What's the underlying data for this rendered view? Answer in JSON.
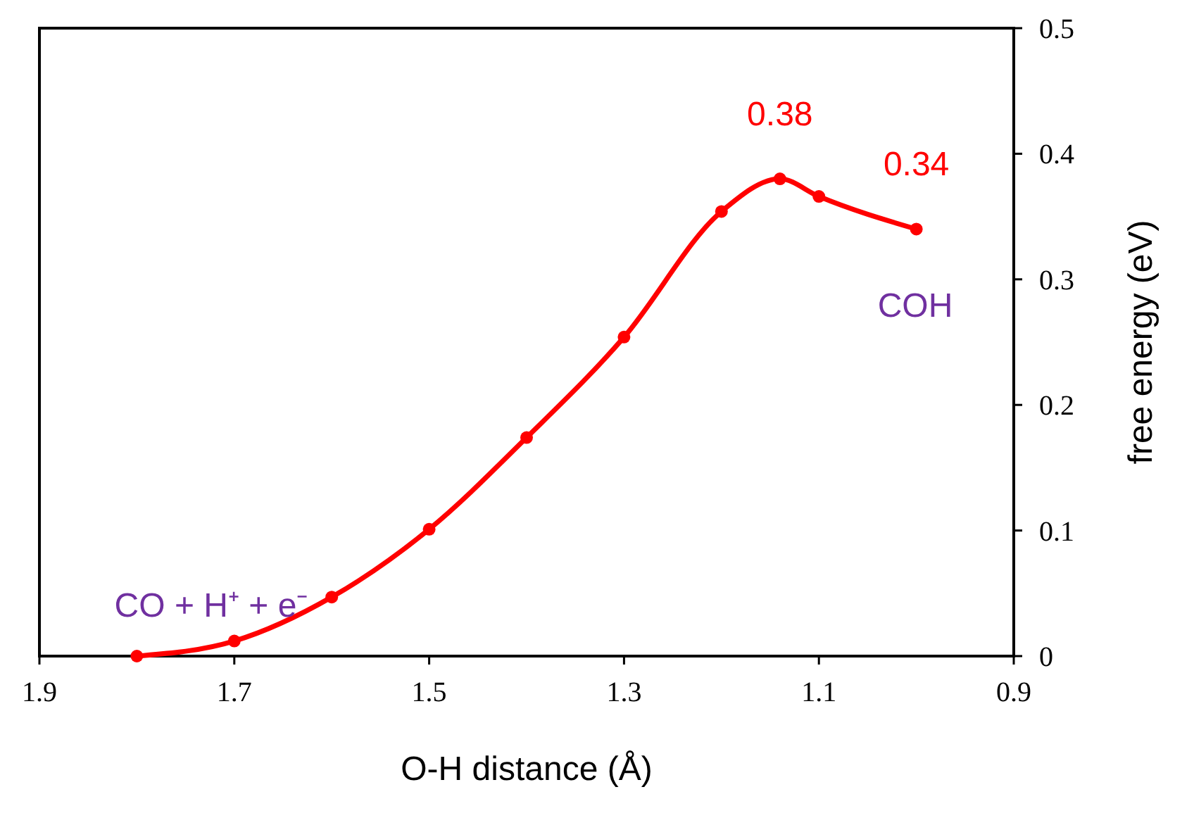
{
  "chart_data": {
    "type": "line",
    "xlabel": "O-H distance (Å)",
    "ylabel": "free energy (eV)",
    "x": [
      1.8,
      1.7,
      1.6,
      1.5,
      1.4,
      1.3,
      1.2,
      1.14,
      1.1,
      1.0
    ],
    "series": [
      {
        "color": "#ff0000",
        "values": [
          0,
          0.012,
          0.047,
          0.101,
          0.174,
          0.254,
          0.354,
          0.38,
          0.366,
          0.34
        ],
        "value_labels": [
          null,
          null,
          null,
          null,
          null,
          null,
          null,
          "0.38",
          null,
          "0.34"
        ]
      }
    ],
    "xlim": [
      1.9,
      0.9
    ],
    "xticks": [
      1.9,
      1.7,
      1.5,
      1.3,
      1.1,
      0.9
    ],
    "ylim": [
      0,
      0.5
    ],
    "yticks": [
      0,
      0.1,
      0.2,
      0.3,
      0.4,
      0.5
    ],
    "marker": "circle",
    "line_style": "solid",
    "annotations": [
      "CO + H⁺ + e⁻",
      "COH"
    ]
  }
}
